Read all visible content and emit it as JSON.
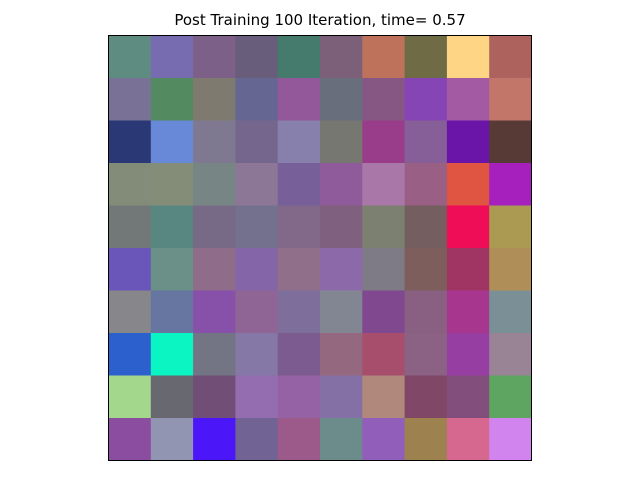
{
  "chart_data": {
    "type": "heatmap",
    "title": "Post Training 100 Iteration, time= 0.57",
    "xlabel": "",
    "ylabel": "",
    "rows": 10,
    "cols": 10,
    "axes_ticks": false,
    "grid": false,
    "cells": [
      [
        "#5f8c80",
        "#786cb0",
        "#7c6088",
        "#685e7c",
        "#457b6c",
        "#7c5f78",
        "#be725c",
        "#6f6b45",
        "#fed585",
        "#ae625e"
      ],
      [
        "#7a7196",
        "#548a5f",
        "#7f7a70",
        "#666692",
        "#925899",
        "#696e7c",
        "#875784",
        "#8545b5",
        "#a35aa2",
        "#c2766a"
      ],
      [
        "#2b3876",
        "#6888d8",
        "#7e7990",
        "#75668e",
        "#8880ac",
        "#777772",
        "#993d8a",
        "#865e98",
        "#6a14a8",
        "#573a35"
      ],
      [
        "#838c79",
        "#848d78",
        "#778584",
        "#8c7796",
        "#775f9a",
        "#8f5b9b",
        "#a978a8",
        "#995f84",
        "#e05442",
        "#a520bd"
      ],
      [
        "#717877",
        "#588680",
        "#766a86",
        "#74718f",
        "#826989",
        "#80607f",
        "#7b8070",
        "#745e60",
        "#ef0d58",
        "#ab9a52"
      ],
      [
        "#6956b8",
        "#6b9087",
        "#8e6c8a",
        "#8465a8",
        "#8f6f89",
        "#8c6aaa",
        "#7e7b86",
        "#7d5e5c",
        "#a03563",
        "#b08e57"
      ],
      [
        "#87878b",
        "#6676a0",
        "#8751aa",
        "#8f6596",
        "#7e6e9c",
        "#828692",
        "#7f488f",
        "#895f82",
        "#a7368f",
        "#7a9096"
      ],
      [
        "#2c60cd",
        "#0af5c1",
        "#737484",
        "#8678a6",
        "#7b5b90",
        "#946980",
        "#a64e6c",
        "#8c6284",
        "#963ea2",
        "#988495"
      ],
      [
        "#a3d78c",
        "#686870",
        "#714e75",
        "#936db0",
        "#9562a6",
        "#8470a4",
        "#b0887c",
        "#814767",
        "#824f7c",
        "#5da561"
      ],
      [
        "#8a4d9f",
        "#9195b1",
        "#4c17f8",
        "#716494",
        "#9c5a8a",
        "#6c8b8b",
        "#915fba",
        "#9d824f",
        "#d6678f",
        "#d184ed"
      ]
    ]
  }
}
